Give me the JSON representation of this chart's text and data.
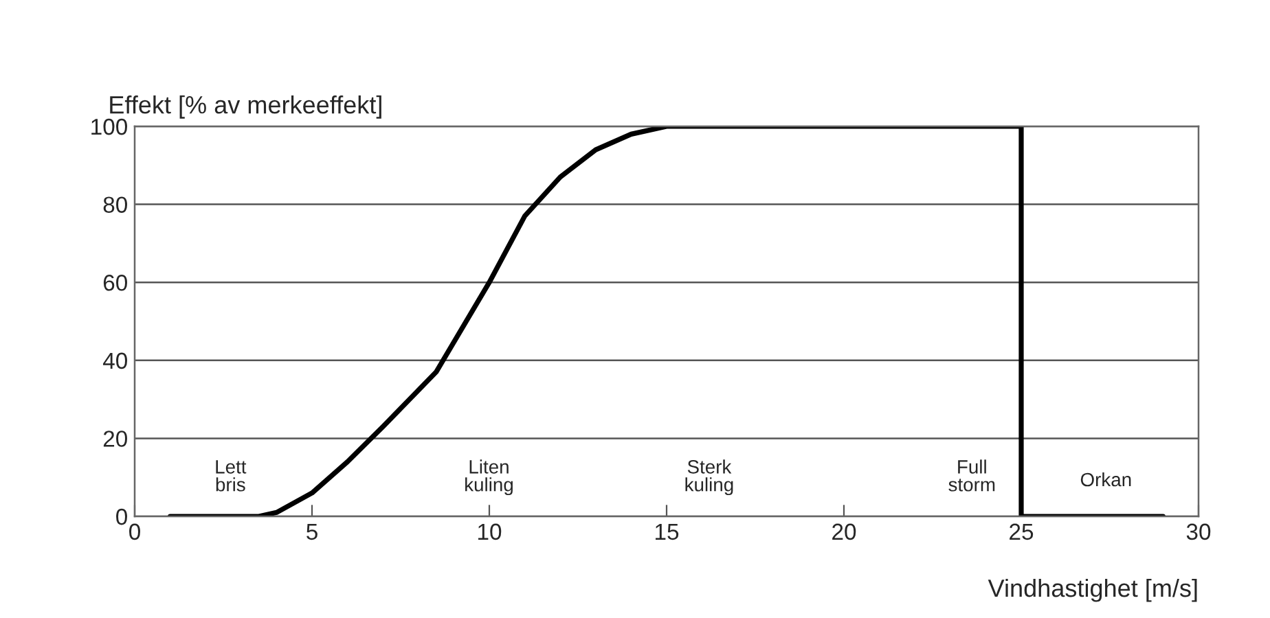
{
  "chart_data": {
    "type": "line",
    "xlabel": "Vindhastighet [m/s]",
    "ylabel": "Effekt [% av merkeeffekt]",
    "x": [
      1,
      3.5,
      4,
      5,
      6,
      7,
      8.5,
      10,
      11,
      12,
      13,
      14,
      15,
      15.5,
      25,
      25,
      29
    ],
    "series": [
      {
        "color": "#000000",
        "values": [
          0,
          0,
          1,
          6,
          14,
          23,
          37,
          60,
          77,
          87,
          94,
          98,
          100,
          100,
          100,
          0,
          0
        ]
      }
    ],
    "xlim": [
      0,
      30
    ],
    "xticks": [
      0,
      5,
      10,
      15,
      20,
      25,
      30
    ],
    "ylim": [
      0,
      100
    ],
    "yticks": [
      0,
      20,
      40,
      60,
      80,
      100
    ],
    "grid": "y",
    "legend": false,
    "marker": "none",
    "line_style": "solid",
    "annotations": [
      "Lett\nbris",
      "Liten\nkuling",
      "Sterk\nkuling",
      "Full\nstorm",
      "Orkan"
    ]
  }
}
